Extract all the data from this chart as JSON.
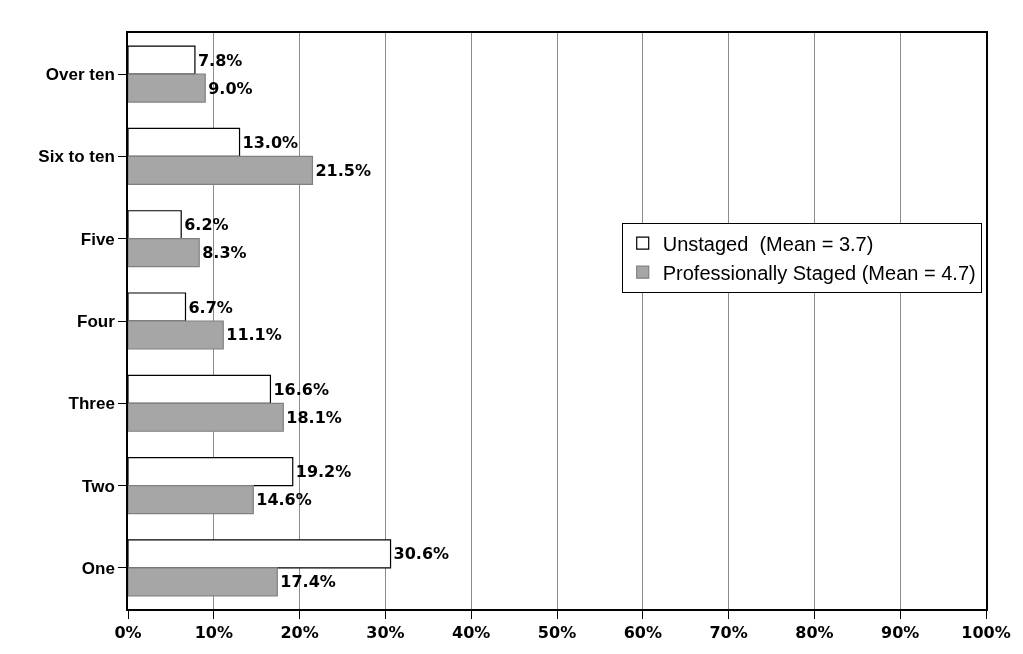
{
  "chart_data": {
    "type": "bar",
    "orientation": "horizontal",
    "categories": [
      "Over ten",
      "Six to ten",
      "Five",
      "Four",
      "Three",
      "Two",
      "One"
    ],
    "series": [
      {
        "name": "Unstaged  (Mean = 3.7)",
        "color": "#ffffff",
        "values": [
          7.8,
          13.0,
          6.2,
          6.7,
          16.6,
          19.2,
          30.6
        ],
        "value_labels": [
          "7.8%",
          "13.0%",
          "6.2%",
          "6.7%",
          "16.6%",
          "19.2%",
          "30.6%"
        ]
      },
      {
        "name": "Professionally Staged (Mean = 4.7)",
        "color": "#a6a6a6",
        "values": [
          9.0,
          21.5,
          8.3,
          11.1,
          18.1,
          14.6,
          17.4
        ],
        "value_labels": [
          "9.0%",
          "21.5%",
          "8.3%",
          "11.1%",
          "18.1%",
          "14.6%",
          "17.4%"
        ]
      }
    ],
    "xlim": [
      0,
      100
    ],
    "xticks": [
      {
        "value": 0,
        "label": "0%"
      },
      {
        "value": 10,
        "label": "10%"
      },
      {
        "value": 20,
        "label": "20%"
      },
      {
        "value": 30,
        "label": "30%"
      },
      {
        "value": 40,
        "label": "40%"
      },
      {
        "value": 50,
        "label": "50%"
      },
      {
        "value": 60,
        "label": "60%"
      },
      {
        "value": 70,
        "label": "70%"
      },
      {
        "value": 80,
        "label": "80%"
      },
      {
        "value": 90,
        "label": "90%"
      },
      {
        "value": 100,
        "label": "100%"
      }
    ],
    "grid": "x",
    "legend": "right"
  }
}
